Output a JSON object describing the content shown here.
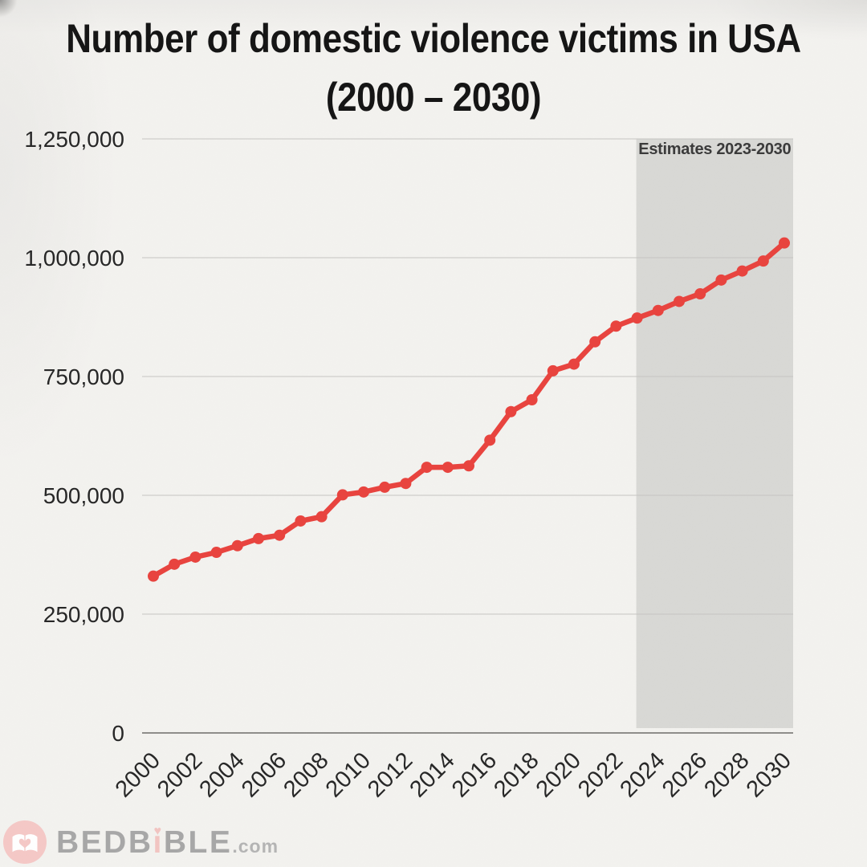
{
  "title": {
    "line1": "Number of domestic violence victims in USA",
    "line2": "(2000 – 2030)"
  },
  "chart_data": {
    "type": "line",
    "title": "Number of domestic violence victims in USA (2000 – 2030)",
    "x": [
      2000,
      2001,
      2002,
      2003,
      2004,
      2005,
      2006,
      2007,
      2008,
      2009,
      2010,
      2011,
      2012,
      2013,
      2014,
      2015,
      2016,
      2017,
      2018,
      2019,
      2020,
      2021,
      2022,
      2023,
      2024,
      2025,
      2026,
      2027,
      2028,
      2029,
      2030
    ],
    "values": [
      330000,
      355000,
      370000,
      380000,
      394000,
      409000,
      416000,
      446000,
      455000,
      501000,
      507000,
      517000,
      525000,
      559000,
      559000,
      562000,
      616000,
      676000,
      701000,
      762000,
      776000,
      823000,
      856000,
      873000,
      889000,
      908000,
      924000,
      953000,
      972000,
      993000,
      1031000
    ],
    "ylim": [
      0,
      1250000
    ],
    "y_ticks": [
      0,
      250000,
      500000,
      750000,
      1000000,
      1250000
    ],
    "y_tick_labels": [
      "0",
      "250,000",
      "500,000",
      "750,000",
      "1,000,000",
      "1,250,000"
    ],
    "x_tick_labels": [
      "2000",
      "2002",
      "2004",
      "2006",
      "2008",
      "2010",
      "2012",
      "2014",
      "2016",
      "2018",
      "2020",
      "2022",
      "2024",
      "2026",
      "2028",
      "2030"
    ],
    "grid": true,
    "legend": "none",
    "line_color": "#e8433e",
    "grid_color": "#c6c5c2",
    "axis_color": "#8e8d8a",
    "tick_label_color": "#262626",
    "estimate_band": {
      "label": "Estimates 2023-2030",
      "start_year": 2023,
      "end_year": 2030,
      "color": "#d8d8d5",
      "label_color": "#3a3a3a"
    }
  },
  "footer": {
    "brand": "BEDBiBLE.com",
    "brand_prefix": "BEDB",
    "brand_i": "ı",
    "brand_i_heart": "♥",
    "brand_suffix": "BLE",
    "brand_tld": ".com",
    "logo_icon": "book-heart-icon",
    "logo_color": "#f5c8c6",
    "logo_glyph_color": "#ffffff"
  }
}
